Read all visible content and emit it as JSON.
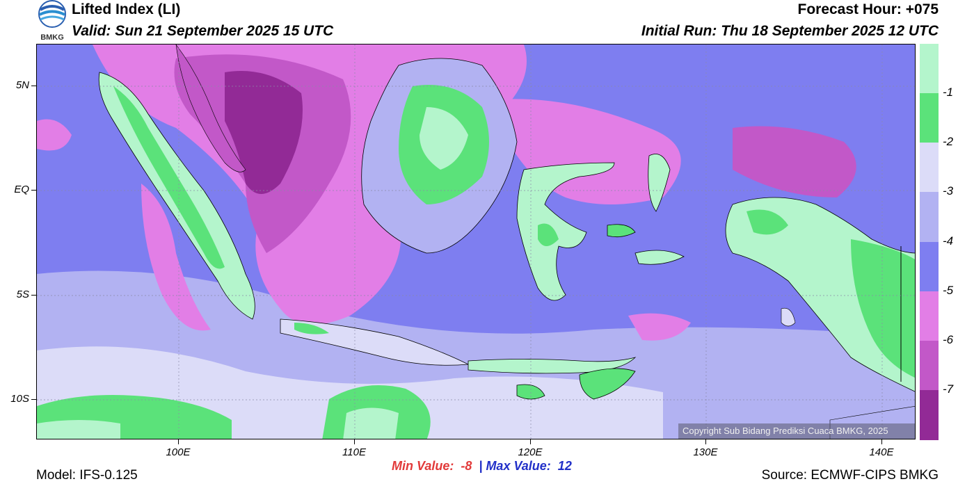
{
  "header": {
    "title": "Lifted Index (LI)",
    "valid": "Valid: Sun 21 September 2025 15 UTC",
    "forecast_hour": "Forecast Hour: +075",
    "initial_run": "Initial Run: Thu 18 September 2025 12 UTC",
    "logo_text": "BMKG"
  },
  "map": {
    "lat_labels": [
      "5N",
      "EQ",
      "5S",
      "10S"
    ],
    "lon_labels": [
      "100E",
      "110E",
      "120E",
      "130E",
      "140E"
    ],
    "copyright": "Copyright Sub Bidang Prediksi Cuaca BMKG, 2025"
  },
  "colorbar": {
    "labels": [
      "-1",
      "-2",
      "-3",
      "-4",
      "-5",
      "-6",
      "-7"
    ],
    "colors": [
      "#b4f5cc",
      "#5be27a",
      "#dcdcf8",
      "#b2b2f2",
      "#7e7ef0",
      "#e27ee6",
      "#c258c8",
      "#922a96"
    ]
  },
  "stats": {
    "min_label": "Min Value:  -8",
    "separator": "|",
    "max_label": "Max Value:  12"
  },
  "footer": {
    "model": "Model: IFS-0.125",
    "source": "Source: ECMWF-CIPS BMKG"
  }
}
